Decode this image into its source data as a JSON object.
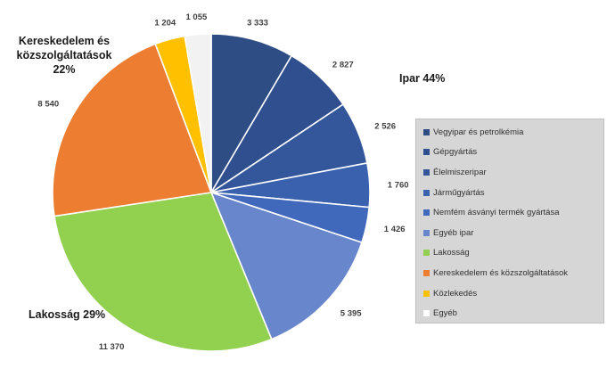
{
  "chart_data": {
    "type": "pie",
    "slices": [
      {
        "name": "Vegyipar és petrolkémia",
        "value": 3333,
        "label": "3 333",
        "color": "#2f4d85"
      },
      {
        "name": "Gépgyártás",
        "value": 2827,
        "label": "2 827",
        "color": "#2f4f8f"
      },
      {
        "name": "Élelmiszeripar",
        "value": 2526,
        "label": "2 526",
        "color": "#34579c"
      },
      {
        "name": "Járműgyártás",
        "value": 1760,
        "label": "1 760",
        "color": "#3a61ad"
      },
      {
        "name": "Nemfém ásványi termék gyártása",
        "value": 1426,
        "label": "1 426",
        "color": "#4169bb"
      },
      {
        "name": "Egyéb ipar",
        "value": 5395,
        "label": "5 395",
        "color": "#6886cb"
      },
      {
        "name": "Lakosság",
        "value": 11370,
        "label": "11 370",
        "color": "#92d050"
      },
      {
        "name": "Kereskedelem és közszolgáltatások",
        "value": 8540,
        "label": "8 540",
        "color": "#ed7d31"
      },
      {
        "name": "Közlekedés",
        "value": 1204,
        "label": "1 204",
        "color": "#ffc000"
      },
      {
        "name": "Egyéb",
        "value": 1055,
        "label": "1 055",
        "color": "#f2f2f2"
      }
    ],
    "group_labels": {
      "industry": "Ipar 44%",
      "residential": "Lakosság 29%",
      "commerce_line1": "Kereskedelem és",
      "commerce_line2": "közszolgáltatások",
      "commerce_line3": "22%"
    }
  }
}
